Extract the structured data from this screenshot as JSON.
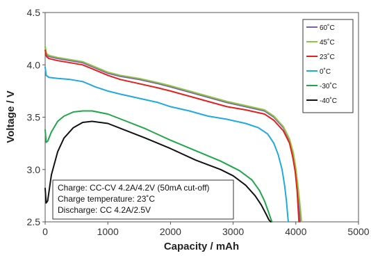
{
  "chart_data": {
    "type": "line",
    "xlabel": "Capacity / mAh",
    "ylabel": "Voltage / V",
    "xlim": [
      0,
      5000
    ],
    "ylim": [
      2.5,
      4.5
    ],
    "xticks": [
      "0",
      "1000",
      "2000",
      "3000",
      "4000",
      "5000"
    ],
    "yticks": [
      "2.5",
      "3.0",
      "3.5",
      "4.0",
      "4.5"
    ],
    "grid": false,
    "legend_placement": "top-right",
    "annotation": [
      "Charge: CC-CV 4.2A/4.2V (50mA cut-off)",
      "Charge temperature: 23˚C",
      "Discharge: CC 4.2A/2.5V"
    ],
    "series": [
      {
        "name": "60˚C",
        "color": "#7b5cb6",
        "x": [
          0,
          20,
          60,
          200,
          400,
          600,
          800,
          1000,
          1200,
          1500,
          1800,
          2000,
          2300,
          2600,
          2900,
          3200,
          3500,
          3650,
          3800,
          3900,
          3960,
          4000,
          4030,
          4050,
          4060,
          4070
        ],
        "y": [
          4.17,
          4.1,
          4.08,
          4.06,
          4.04,
          4.02,
          3.97,
          3.92,
          3.89,
          3.86,
          3.82,
          3.79,
          3.74,
          3.69,
          3.64,
          3.6,
          3.56,
          3.5,
          3.4,
          3.28,
          3.15,
          3.0,
          2.85,
          2.7,
          2.6,
          2.5
        ]
      },
      {
        "name": "45˚C",
        "color": "#8ec63f",
        "x": [
          0,
          20,
          60,
          200,
          400,
          600,
          800,
          1000,
          1200,
          1500,
          1800,
          2000,
          2300,
          2600,
          2900,
          3200,
          3500,
          3650,
          3800,
          3900,
          3960,
          4000,
          4030,
          4060,
          4080,
          4090
        ],
        "y": [
          4.18,
          4.11,
          4.09,
          4.07,
          4.05,
          4.03,
          3.98,
          3.93,
          3.9,
          3.87,
          3.83,
          3.8,
          3.75,
          3.7,
          3.65,
          3.61,
          3.57,
          3.51,
          3.41,
          3.29,
          3.16,
          3.01,
          2.86,
          2.7,
          2.58,
          2.5
        ]
      },
      {
        "name": "23˚C",
        "color": "#e3201b",
        "x": [
          0,
          20,
          60,
          200,
          400,
          600,
          800,
          1000,
          1200,
          1500,
          1800,
          2000,
          2300,
          2600,
          2900,
          3200,
          3500,
          3650,
          3800,
          3900,
          3950,
          3990,
          4020,
          4040,
          4050
        ],
        "y": [
          4.14,
          4.08,
          4.06,
          4.04,
          4.02,
          4.0,
          3.95,
          3.9,
          3.86,
          3.82,
          3.78,
          3.75,
          3.7,
          3.65,
          3.6,
          3.57,
          3.53,
          3.47,
          3.37,
          3.25,
          3.12,
          2.98,
          2.8,
          2.6,
          2.5
        ]
      },
      {
        "name": "0˚C",
        "color": "#1ea9e1",
        "x": [
          0,
          15,
          60,
          200,
          400,
          600,
          800,
          1000,
          1200,
          1500,
          1800,
          2000,
          2300,
          2600,
          2900,
          3200,
          3400,
          3550,
          3650,
          3720,
          3780,
          3820,
          3850,
          3870,
          3880
        ],
        "y": [
          3.98,
          3.9,
          3.88,
          3.87,
          3.86,
          3.84,
          3.79,
          3.75,
          3.72,
          3.68,
          3.64,
          3.6,
          3.56,
          3.51,
          3.48,
          3.44,
          3.4,
          3.34,
          3.25,
          3.14,
          3.0,
          2.85,
          2.7,
          2.56,
          2.5
        ]
      },
      {
        "name": "-30˚C",
        "color": "#1fa64a",
        "x": [
          0,
          15,
          40,
          100,
          200,
          300,
          450,
          600,
          750,
          1000,
          1300,
          1600,
          2000,
          2400,
          2800,
          3100,
          3300,
          3420,
          3500,
          3560,
          3600,
          3620
        ],
        "y": [
          3.38,
          3.26,
          3.27,
          3.36,
          3.46,
          3.51,
          3.55,
          3.56,
          3.56,
          3.53,
          3.46,
          3.39,
          3.28,
          3.18,
          3.08,
          2.99,
          2.9,
          2.8,
          2.7,
          2.6,
          2.53,
          2.5
        ]
      },
      {
        "name": "-40˚C",
        "color": "#111111",
        "x": [
          0,
          15,
          40,
          100,
          200,
          300,
          450,
          600,
          750,
          1000,
          1300,
          1600,
          2000,
          2400,
          2800,
          3000,
          3200,
          3350,
          3450,
          3520,
          3570,
          3600
        ],
        "y": [
          2.82,
          2.68,
          2.7,
          2.95,
          3.17,
          3.3,
          3.4,
          3.45,
          3.46,
          3.44,
          3.37,
          3.3,
          3.2,
          3.09,
          3.0,
          2.94,
          2.85,
          2.75,
          2.66,
          2.58,
          2.52,
          2.5
        ]
      }
    ]
  }
}
